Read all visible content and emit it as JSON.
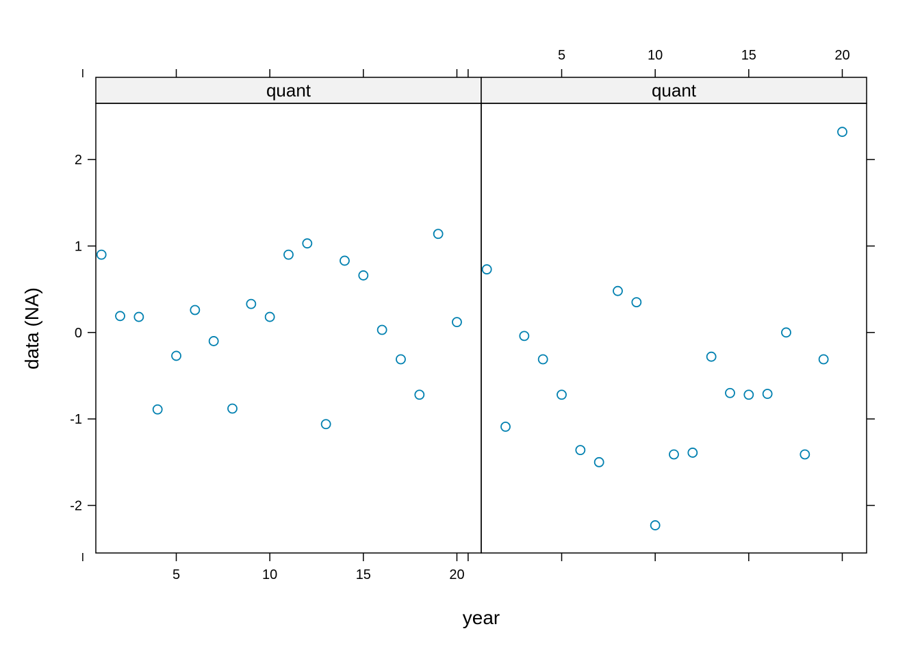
{
  "chart_data": {
    "type": "scatter",
    "xlabel": "year",
    "ylabel": "data (NA)",
    "xlim": [
      0.7,
      21.3
    ],
    "ylim": [
      -2.55,
      2.65
    ],
    "x_ticks": [
      5,
      10,
      15,
      20
    ],
    "y_ticks": [
      -2,
      -1,
      0,
      1,
      2
    ],
    "marker": "open-circle",
    "point_color": "#0080b0",
    "strip_fill": "#f2f2f2",
    "panels": [
      {
        "strip": "quant",
        "x_tick_labels_side": "bottom",
        "points": [
          {
            "x": 1,
            "y": 0.9
          },
          {
            "x": 2,
            "y": 0.19
          },
          {
            "x": 3,
            "y": 0.18
          },
          {
            "x": 4,
            "y": -0.89
          },
          {
            "x": 5,
            "y": -0.27
          },
          {
            "x": 6,
            "y": 0.26
          },
          {
            "x": 7,
            "y": -0.1
          },
          {
            "x": 8,
            "y": -0.88
          },
          {
            "x": 9,
            "y": 0.33
          },
          {
            "x": 10,
            "y": 0.18
          },
          {
            "x": 11,
            "y": 0.9
          },
          {
            "x": 12,
            "y": 1.03
          },
          {
            "x": 13,
            "y": -1.06
          },
          {
            "x": 14,
            "y": 0.83
          },
          {
            "x": 15,
            "y": 0.66
          },
          {
            "x": 16,
            "y": 0.03
          },
          {
            "x": 17,
            "y": -0.31
          },
          {
            "x": 18,
            "y": -0.72
          },
          {
            "x": 19,
            "y": 1.14
          },
          {
            "x": 20,
            "y": 0.12
          }
        ]
      },
      {
        "strip": "quant",
        "x_tick_labels_side": "top",
        "points": [
          {
            "x": 1,
            "y": 0.73
          },
          {
            "x": 2,
            "y": -1.09
          },
          {
            "x": 3,
            "y": -0.04
          },
          {
            "x": 4,
            "y": -0.31
          },
          {
            "x": 5,
            "y": -0.72
          },
          {
            "x": 6,
            "y": -1.36
          },
          {
            "x": 7,
            "y": -1.5
          },
          {
            "x": 8,
            "y": 0.48
          },
          {
            "x": 9,
            "y": 0.35
          },
          {
            "x": 10,
            "y": -2.23
          },
          {
            "x": 11,
            "y": -1.41
          },
          {
            "x": 12,
            "y": -1.39
          },
          {
            "x": 13,
            "y": -0.28
          },
          {
            "x": 14,
            "y": -0.7
          },
          {
            "x": 15,
            "y": -0.72
          },
          {
            "x": 16,
            "y": -0.71
          },
          {
            "x": 17,
            "y": 0.0
          },
          {
            "x": 18,
            "y": -1.41
          },
          {
            "x": 19,
            "y": -0.31
          },
          {
            "x": 20,
            "y": 2.32
          }
        ]
      }
    ]
  }
}
